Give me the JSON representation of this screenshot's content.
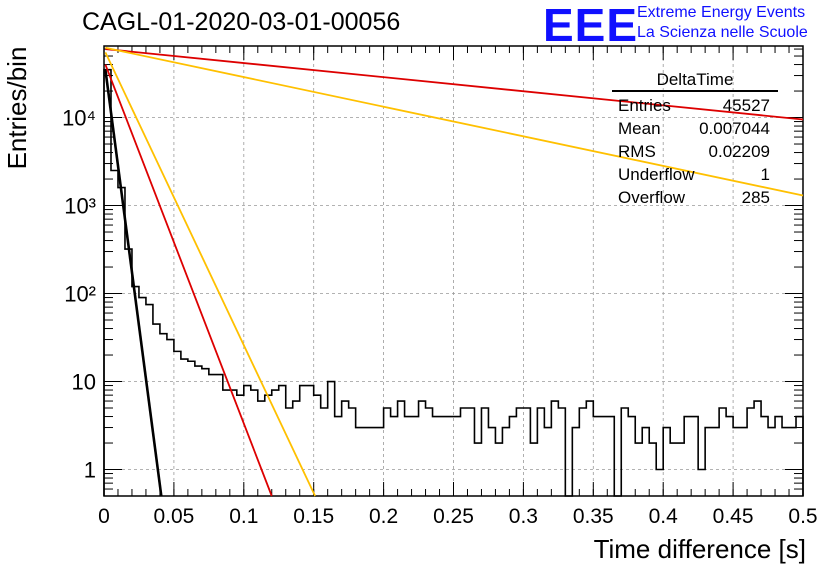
{
  "title": "CAGL-01-2020-03-01-00056",
  "logo": {
    "letters": "EEE",
    "line1": "Extreme Energy Events",
    "line2": "La Scienza nelle Scuole",
    "color": "#1010ff"
  },
  "stats": {
    "title": "DeltaTime",
    "rows": [
      {
        "label": "Entries",
        "value": "45527"
      },
      {
        "label": "Mean",
        "value": "0.007044"
      },
      {
        "label": "RMS",
        "value": "0.02209"
      },
      {
        "label": "Underflow",
        "value": "1"
      },
      {
        "label": "Overflow",
        "value": "285"
      }
    ]
  },
  "chart_data": {
    "type": "line",
    "title": "CAGL-01-2020-03-01-00056",
    "xlabel": "Time difference [s]",
    "ylabel": "Entries/bin",
    "xlim": [
      0,
      0.5
    ],
    "ylim": [
      0.5,
      65000
    ],
    "log_y": true,
    "grid": true,
    "x_ticks": [
      "0",
      "0.05",
      "0.1",
      "0.15",
      "0.2",
      "0.25",
      "0.3",
      "0.35",
      "0.4",
      "0.45",
      "0.5"
    ],
    "y_ticks": [
      "1",
      "10",
      "10²",
      "10³",
      "10⁴"
    ],
    "histogram": {
      "bin_width": 0.005,
      "color": "#000000",
      "counts": [
        35000,
        2500,
        1600,
        320,
        120,
        90,
        75,
        45,
        35,
        30,
        22,
        18,
        17,
        15,
        14,
        12,
        12,
        8,
        8,
        7,
        9,
        8,
        6,
        7,
        8,
        9,
        5,
        6,
        9,
        9,
        7,
        5,
        10,
        4,
        6,
        5,
        3,
        3,
        3,
        3,
        5,
        4,
        6,
        4,
        4,
        6,
        5,
        4,
        4,
        4,
        4,
        5,
        5,
        2,
        5,
        3,
        2,
        3,
        4,
        5,
        5,
        2,
        5,
        3,
        6,
        5,
        0,
        3,
        5,
        6,
        4,
        4,
        4,
        0,
        5,
        4,
        2,
        3,
        2,
        1,
        3,
        2,
        2,
        4,
        4,
        1,
        3,
        3,
        5,
        4,
        3,
        3,
        5,
        6,
        4,
        3,
        4,
        3,
        3,
        4
      ]
    },
    "series": [
      {
        "color": "#000000",
        "x": [
          0.001,
          0.041
        ],
        "y": [
          35000,
          0.5
        ]
      },
      {
        "color": "#dd0000",
        "x": [
          0.001,
          0.12
        ],
        "y": [
          40000,
          0.5
        ]
      },
      {
        "color": "#ffc000",
        "x": [
          0.001,
          0.151
        ],
        "y": [
          55000,
          0.5
        ]
      },
      {
        "color": "#dd0000",
        "x": [
          0.001,
          0.5
        ],
        "y": [
          60000,
          9500
        ]
      },
      {
        "color": "#ffc000",
        "x": [
          0.001,
          0.5
        ],
        "y": [
          62000,
          1300
        ]
      }
    ]
  }
}
